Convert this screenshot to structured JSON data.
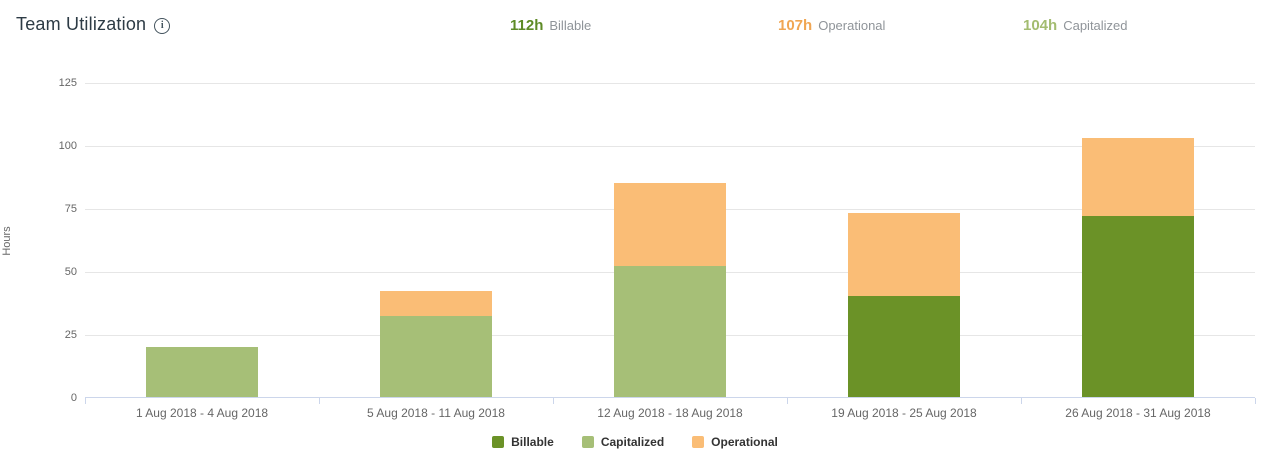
{
  "header": {
    "title": "Team Utilization",
    "info_icon_glyph": "i",
    "stats": [
      {
        "value": "112h",
        "label": "Billable",
        "color": "#5e8b26"
      },
      {
        "value": "107h",
        "label": "Operational",
        "color": "#f0a653"
      },
      {
        "value": "104h",
        "label": "Capitalized",
        "color": "#a3bc70"
      }
    ]
  },
  "chart_data": {
    "type": "bar",
    "stacked": true,
    "title": "Team Utilization",
    "xlabel": "",
    "ylabel": "Hours",
    "ylim": [
      0,
      125
    ],
    "yticks": [
      0,
      25,
      50,
      75,
      100,
      125
    ],
    "grid": true,
    "legend_position": "bottom",
    "categories": [
      "1 Aug 2018 - 4 Aug 2018",
      "5 Aug 2018 - 11 Aug 2018",
      "12 Aug 2018 - 18 Aug 2018",
      "19 Aug 2018 - 25 Aug 2018",
      "26 Aug 2018 - 31 Aug 2018"
    ],
    "series": [
      {
        "name": "Billable",
        "color": "#6b9227",
        "values": [
          0,
          0,
          0,
          40,
          72
        ]
      },
      {
        "name": "Capitalized",
        "color": "#a6bf77",
        "values": [
          20,
          32,
          52,
          0,
          0
        ]
      },
      {
        "name": "Operational",
        "color": "#fabd76",
        "values": [
          0,
          10,
          33,
          33,
          31
        ]
      }
    ]
  }
}
